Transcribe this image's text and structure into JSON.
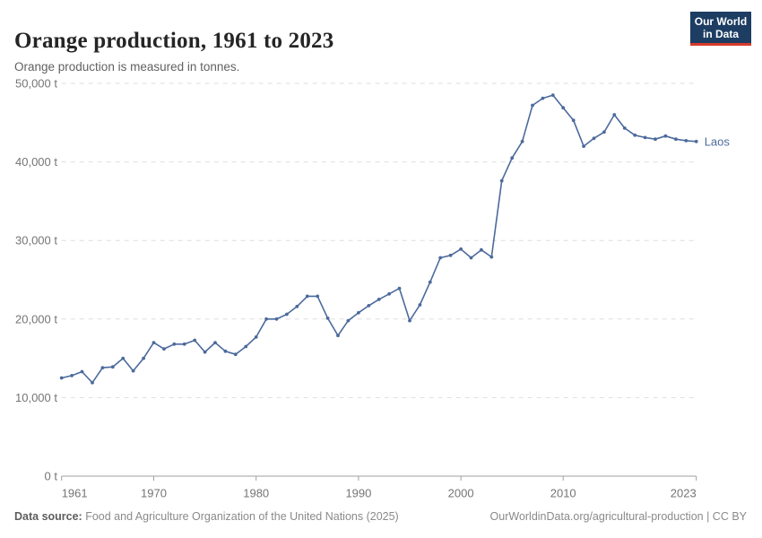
{
  "header": {
    "title": "Orange production, 1961 to 2023",
    "subtitle": "Orange production is measured in tonnes."
  },
  "logo": {
    "line1": "Our World",
    "line2": "in Data",
    "bg_color": "#1d3d63",
    "accent_color": "#d93a2b"
  },
  "chart_data": {
    "type": "line",
    "title": "Orange production, 1961 to 2023",
    "unit": "tonnes",
    "entity_label": "Laos",
    "xlim": [
      1961,
      2023
    ],
    "ylim": [
      0,
      50000
    ],
    "grid": "dashed-horizontal",
    "legend_position": "end-of-line",
    "x_ticks": [
      1961,
      1970,
      1980,
      1990,
      2000,
      2010,
      2023
    ],
    "y_ticks": [
      0,
      10000,
      20000,
      30000,
      40000,
      50000
    ],
    "y_tick_labels": [
      "0 t",
      "10,000 t",
      "20,000 t",
      "30,000 t",
      "40,000 t",
      "50,000 t"
    ],
    "series": [
      {
        "name": "Laos",
        "color": "#4c6a9c",
        "x": [
          1961,
          1962,
          1963,
          1964,
          1965,
          1966,
          1967,
          1968,
          1969,
          1970,
          1971,
          1972,
          1973,
          1974,
          1975,
          1976,
          1977,
          1978,
          1979,
          1980,
          1981,
          1982,
          1983,
          1984,
          1985,
          1986,
          1987,
          1988,
          1989,
          1990,
          1991,
          1992,
          1993,
          1994,
          1995,
          1996,
          1997,
          1998,
          1999,
          2000,
          2001,
          2002,
          2003,
          2004,
          2005,
          2006,
          2007,
          2008,
          2009,
          2010,
          2011,
          2012,
          2013,
          2014,
          2015,
          2016,
          2017,
          2018,
          2019,
          2020,
          2021,
          2022,
          2023
        ],
        "values": [
          12500,
          12800,
          13300,
          11900,
          13800,
          13900,
          15000,
          13400,
          15000,
          17000,
          16200,
          16800,
          16800,
          17300,
          15800,
          17000,
          15900,
          15500,
          16500,
          17700,
          20000,
          20000,
          20600,
          21600,
          22900,
          22900,
          20100,
          17900,
          19800,
          20800,
          21700,
          22500,
          23200,
          23900,
          19800,
          21800,
          24700,
          27800,
          28100,
          28900,
          27800,
          28800,
          27900,
          37600,
          40500,
          42600,
          47200,
          48100,
          48500,
          46900,
          45300,
          42000,
          43000,
          43800,
          46000,
          44300,
          43400,
          43100,
          42900,
          43300,
          42900,
          42700,
          42600
        ]
      }
    ]
  },
  "footer": {
    "source_label": "Data source:",
    "source_text": " Food and Agriculture Organization of the United Nations (2025)",
    "link_text": "OurWorldinData.org/agricultural-production | CC BY"
  },
  "colors": {
    "line": "#4c6a9c",
    "grid": "#dedede",
    "axis": "#a1a1a1",
    "tick_label": "#757575"
  }
}
